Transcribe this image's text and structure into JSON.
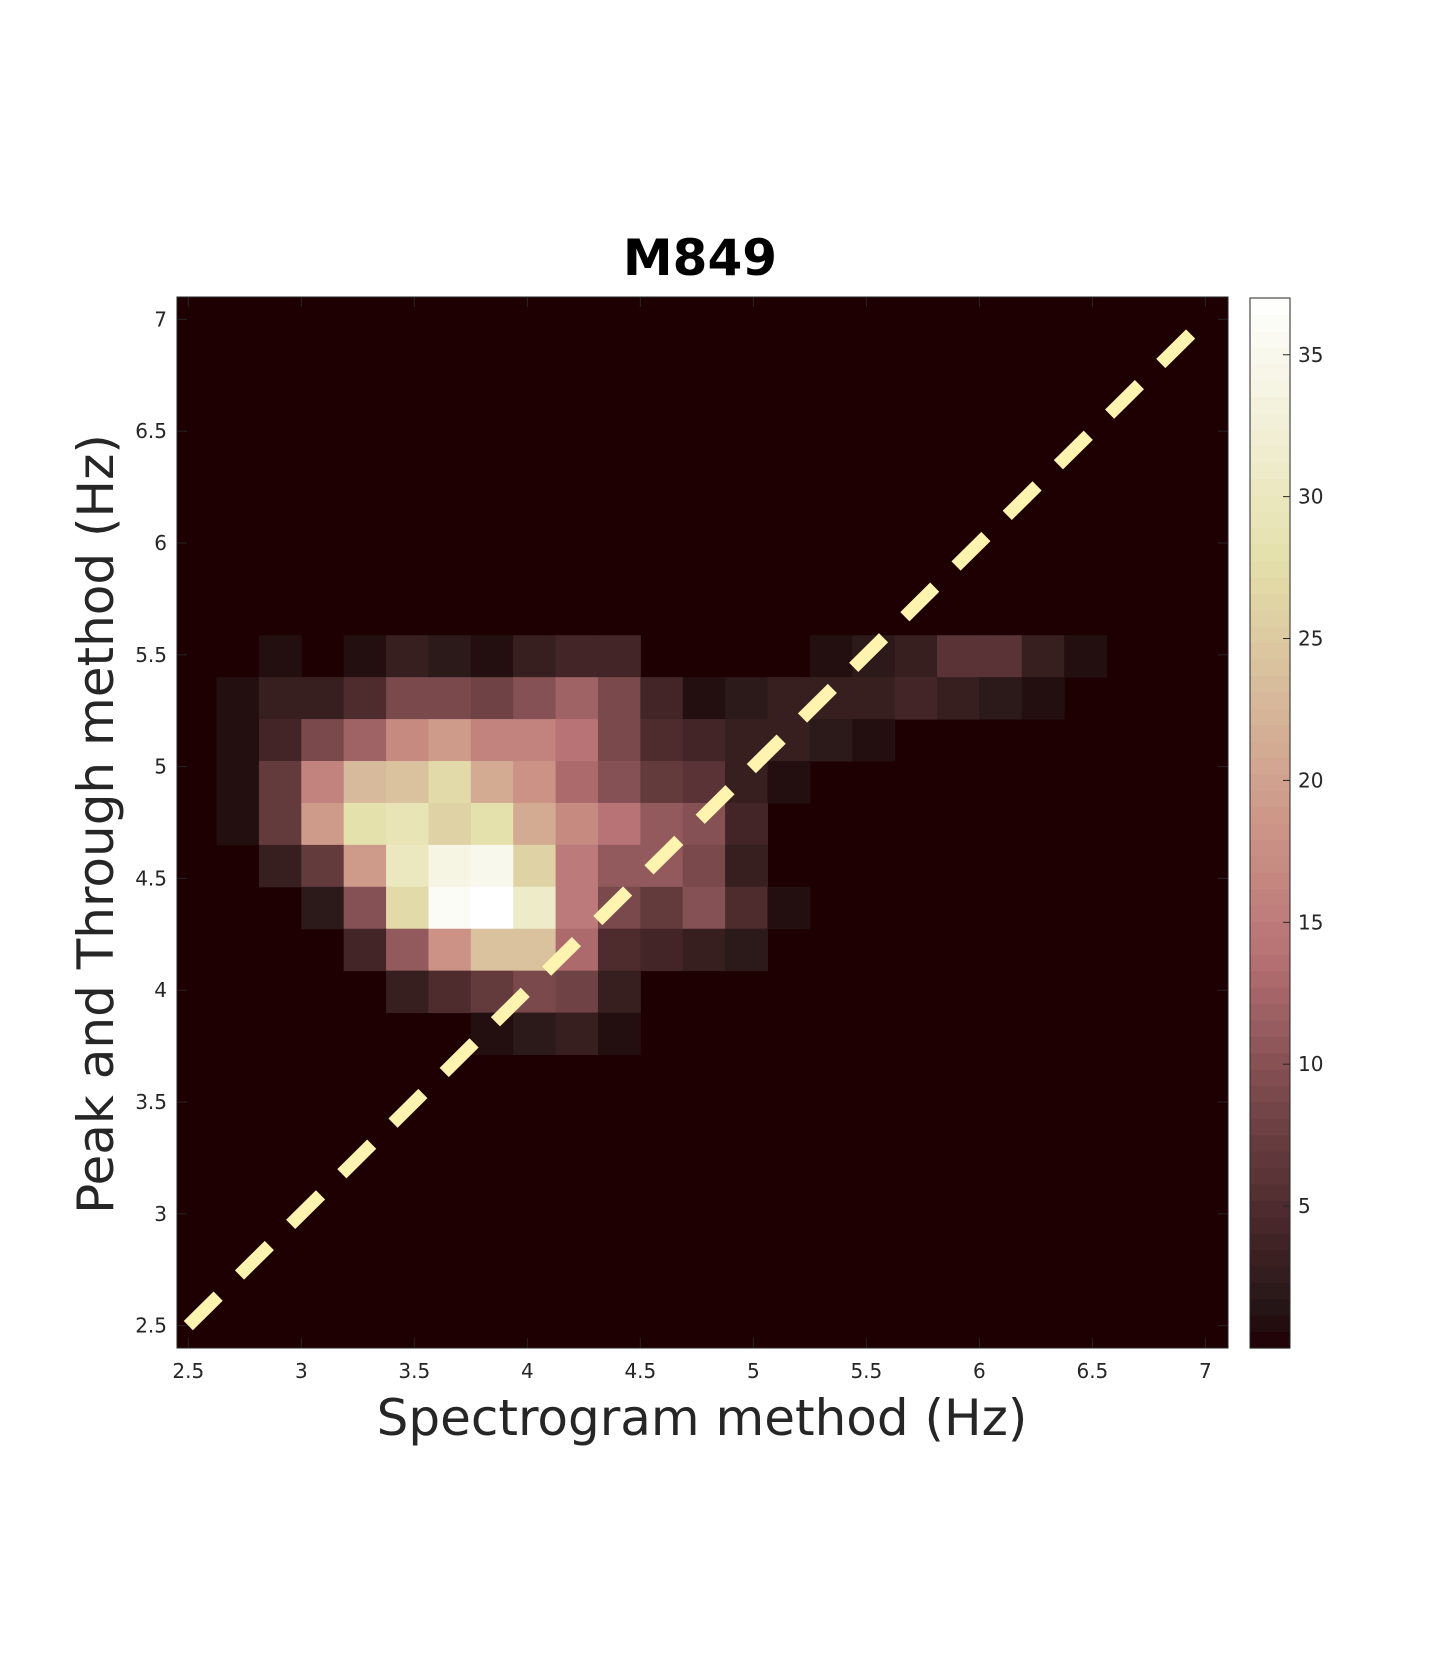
{
  "chart_data": {
    "type": "heatmap",
    "title": "M849",
    "xlabel": "Spectrogram method (Hz)",
    "ylabel": "Peak and Through method (Hz)",
    "xlim": [
      2.45,
      7.1
    ],
    "ylim": [
      2.4,
      7.1
    ],
    "xticks": [
      2.5,
      3,
      3.5,
      4,
      4.5,
      5,
      5.5,
      6,
      6.5,
      7
    ],
    "xtick_labels": [
      "2.5",
      "3",
      "3.5",
      "4",
      "4.5",
      "5",
      "5.5",
      "6",
      "6.5",
      "7"
    ],
    "yticks": [
      2.5,
      3,
      3.5,
      4,
      4.5,
      5,
      5.5,
      6,
      6.5,
      7
    ],
    "ytick_labels": [
      "2.5",
      "3",
      "3.5",
      "4",
      "4.5",
      "5",
      "5.5",
      "6",
      "6.5",
      "7"
    ],
    "bin_width": 0.1875,
    "x_bin_start": 2.625,
    "y_bin_start": 5.4,
    "bin_height": 0.1875,
    "counts_rows_top_to_bottom": [
      [
        0,
        1,
        0,
        1,
        3,
        2,
        1,
        3,
        4,
        4,
        0,
        0,
        0,
        0,
        1,
        2,
        3,
        6,
        6,
        3,
        1
      ],
      [
        1,
        3,
        3,
        5,
        9,
        9,
        8,
        10,
        12,
        9,
        4,
        1,
        2,
        3,
        3,
        3,
        4,
        3,
        2,
        1,
        0
      ],
      [
        1,
        4,
        9,
        12,
        17,
        19,
        16,
        16,
        14,
        9,
        5,
        4,
        3,
        3,
        2,
        1,
        0,
        0,
        0,
        0,
        0
      ],
      [
        1,
        7,
        16,
        23,
        24,
        27,
        21,
        18,
        13,
        10,
        7,
        6,
        3,
        1,
        0,
        0,
        0,
        0,
        0,
        0,
        0
      ],
      [
        1,
        7,
        19,
        28,
        29,
        26,
        28,
        21,
        17,
        14,
        11,
        10,
        4,
        0,
        0,
        0,
        0,
        0,
        0,
        0,
        0
      ],
      [
        0,
        3,
        7,
        19,
        30,
        34,
        35,
        26,
        15,
        11,
        11,
        9,
        3,
        0,
        0,
        0,
        0,
        0,
        0,
        0,
        0
      ],
      [
        0,
        0,
        2,
        10,
        27,
        36,
        37,
        31,
        15,
        9,
        7,
        10,
        5,
        1,
        0,
        0,
        0,
        0,
        0,
        0,
        0
      ],
      [
        0,
        0,
        0,
        4,
        11,
        18,
        24,
        24,
        13,
        5,
        4,
        3,
        2,
        0,
        0,
        0,
        0,
        0,
        0,
        0,
        0
      ],
      [
        0,
        0,
        0,
        0,
        3,
        5,
        7,
        9,
        8,
        3,
        0,
        0,
        0,
        0,
        0,
        0,
        0,
        0,
        0,
        0,
        0
      ],
      [
        0,
        0,
        0,
        0,
        0,
        0,
        1,
        2,
        3,
        1,
        0,
        0,
        0,
        0,
        0,
        0,
        0,
        0,
        0,
        0,
        0
      ]
    ],
    "reference_line": {
      "style": "dashed",
      "from": [
        2.5,
        2.5
      ],
      "to": [
        7,
        7
      ],
      "color": "#fff3b0"
    },
    "colorbar": {
      "ticks": [
        5,
        10,
        15,
        20,
        25,
        30,
        35
      ],
      "tick_labels": [
        "5",
        "10",
        "15",
        "20",
        "25",
        "30",
        "35"
      ],
      "range": [
        0,
        37
      ],
      "colormap": "pink-black"
    },
    "background_color": "#1e0003"
  }
}
